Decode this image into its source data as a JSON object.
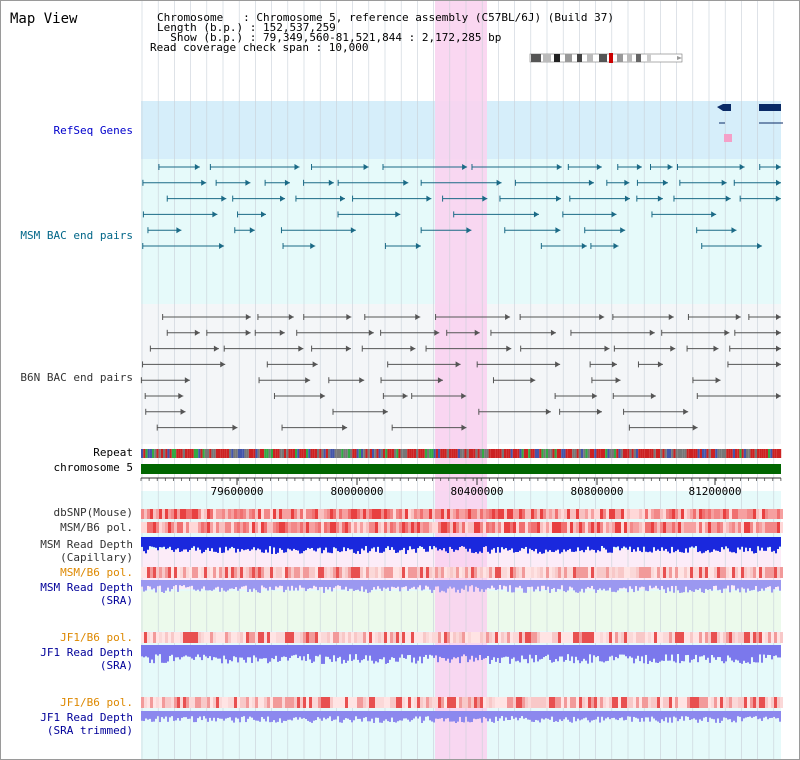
{
  "title": "Map View",
  "info": {
    "chromosome": "Chromosome   : Chromosome 5, reference assembly (C57BL/6J) (Build 37)",
    "length": "Length (b.p.) : 152,537,259",
    "show": "  Show (b.p.) : 79,349,560-81,521,844 : 2,172,285 bp",
    "coverage": "Read coverage check span : 10,000"
  },
  "tracks": {
    "refseq": "RefSeq Genes",
    "msm_bac": "MSM BAC end pairs",
    "b6n_bac": "B6N BAC end pairs",
    "repeat": "Repeat",
    "chromosome": "chromosome 5",
    "dbsnp": "dbSNP(Mouse)",
    "msm_b6_pol": "MSM/B6 pol.",
    "msm_depth_cap_1": "MSM Read Depth",
    "msm_depth_cap_2": "(Capillary)",
    "msm_b6_pol_2": "MSM/B6 pol.",
    "msm_depth_sra_1": "MSM Read Depth",
    "msm_depth_sra_2": "(SRA)",
    "jf1_b6_pol": "JF1/B6 pol.",
    "jf1_depth_sra_1": "JF1 Read Depth",
    "jf1_depth_sra_2": "(SRA)",
    "jf1_b6_pol_2": "JF1/B6 pol.",
    "jf1_depth_trim_1": "JF1 Read Depth",
    "jf1_depth_trim_2": "(SRA trimmed)"
  },
  "axis": {
    "ticks": [
      "79600000",
      "80000000",
      "80400000",
      "80800000",
      "81200000"
    ]
  },
  "colors": {
    "refseq_label": "#0000cc",
    "msm_label": "#006688",
    "b6n_label": "#333333",
    "orange_label": "#dd8800",
    "navy_label": "#000099",
    "highlight": "#f9d3ef",
    "chromosome_bar": "#006600"
  }
}
